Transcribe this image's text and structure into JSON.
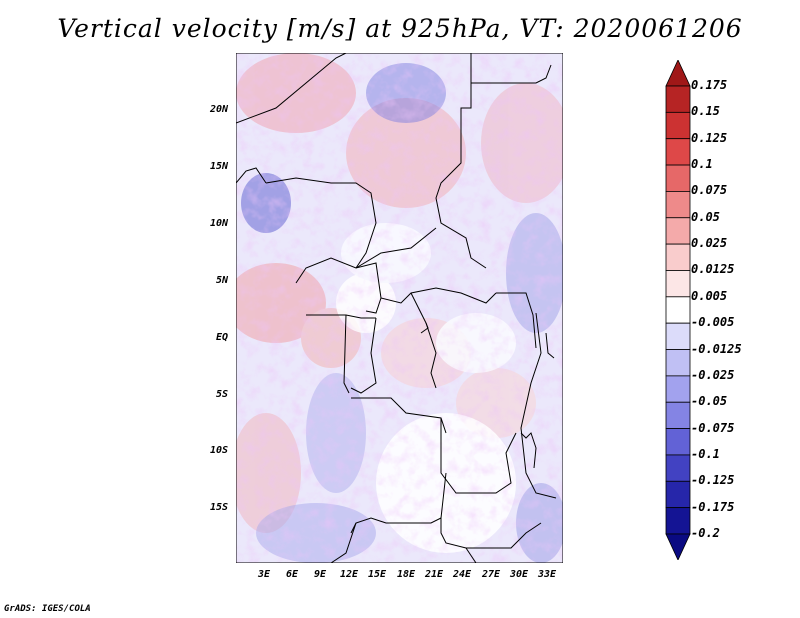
{
  "title": "Vertical velocity [m/s] at 925hPa, VT: 2020061206",
  "credit": "GrADS: IGES/COLA",
  "lat_labels": [
    "20N",
    "15N",
    "10N",
    "5N",
    "EQ",
    "5S",
    "10S",
    "15S"
  ],
  "lon_labels": [
    "3E",
    "6E",
    "9E",
    "12E",
    "15E",
    "18E",
    "21E",
    "24E",
    "27E",
    "30E",
    "33E"
  ],
  "colorbar": {
    "levels": [
      "0.175",
      "0.15",
      "0.125",
      "0.1",
      "0.075",
      "0.05",
      "0.025",
      "0.0125",
      "0.005",
      "-0.005",
      "-0.0125",
      "-0.025",
      "-0.05",
      "-0.075",
      "-0.1",
      "-0.125",
      "-0.175",
      "-0.2"
    ],
    "colors": [
      "#a01818",
      "#b62424",
      "#cc3232",
      "#de4848",
      "#e66868",
      "#ee8a8a",
      "#f4aaaa",
      "#f9cccc",
      "#fce6e6",
      "#ffffff",
      "#dcdcfa",
      "#c0c0f4",
      "#a2a2ee",
      "#8484e4",
      "#6262d6",
      "#4242c2",
      "#2626aa",
      "#141494",
      "#0a0a82"
    ]
  }
}
